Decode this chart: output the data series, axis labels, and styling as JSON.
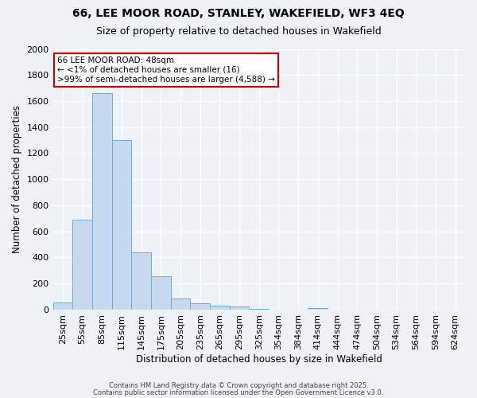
{
  "title1": "66, LEE MOOR ROAD, STANLEY, WAKEFIELD, WF3 4EQ",
  "title2": "Size of property relative to detached houses in Wakefield",
  "xlabel": "Distribution of detached houses by size in Wakefield",
  "ylabel": "Number of detached properties",
  "categories": [
    "25sqm",
    "55sqm",
    "85sqm",
    "115sqm",
    "145sqm",
    "175sqm",
    "205sqm",
    "235sqm",
    "265sqm",
    "295sqm",
    "325sqm",
    "354sqm",
    "384sqm",
    "414sqm",
    "444sqm",
    "474sqm",
    "504sqm",
    "534sqm",
    "564sqm",
    "594sqm",
    "624sqm"
  ],
  "values": [
    55,
    690,
    1660,
    1300,
    440,
    255,
    85,
    50,
    28,
    22,
    8,
    0,
    0,
    10,
    0,
    0,
    0,
    0,
    0,
    0,
    0
  ],
  "bar_color": "#c5d8ed",
  "bar_edge_color": "#6aaed6",
  "annotation_title": "66 LEE MOOR ROAD: 48sqm",
  "annotation_line1": "← <1% of detached houses are smaller (16)",
  "annotation_line2": ">99% of semi-detached houses are larger (4,588) →",
  "annotation_box_color": "#ffffff",
  "annotation_box_edge": "#cc0000",
  "ylim": [
    0,
    2000
  ],
  "yticks": [
    0,
    200,
    400,
    600,
    800,
    1000,
    1200,
    1400,
    1600,
    1800,
    2000
  ],
  "background_color": "#edf2f7",
  "grid_color": "#ffffff",
  "footer1": "Contains HM Land Registry data © Crown copyright and database right 2025.",
  "footer2": "Contains public sector information licensed under the Open Government Licence v3.0."
}
